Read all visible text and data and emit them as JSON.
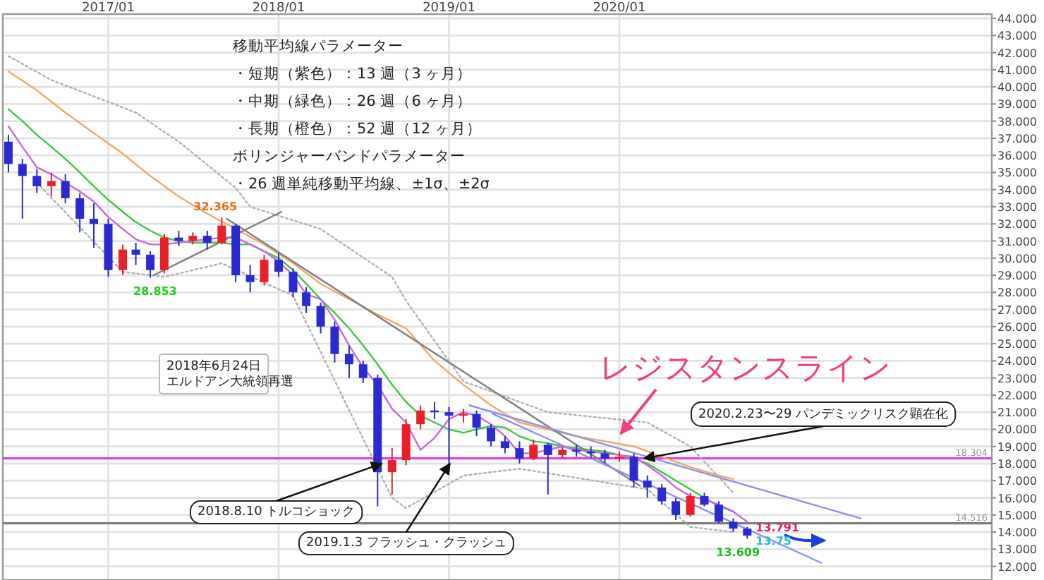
{
  "chart_data": {
    "type": "candlestick",
    "xlim": [
      "2016-05-20",
      "2022-03-09"
    ],
    "xticks": [
      {
        "value": "2017-01",
        "label": "2017/01"
      },
      {
        "value": "2018-01",
        "label": "2018/01"
      },
      {
        "value": "2019-01",
        "label": "2019/01"
      },
      {
        "value": "2020-01",
        "label": "2020/01"
      }
    ],
    "ylim": [
      11.2,
      44.25
    ],
    "yticks": [
      {
        "value": 12,
        "label": "12.000"
      },
      {
        "value": 13,
        "label": "13.000"
      },
      {
        "value": 14,
        "label": "14.000"
      },
      {
        "value": 15,
        "label": "15.000"
      },
      {
        "value": 16,
        "label": "16.000"
      },
      {
        "value": 17,
        "label": "17.000"
      },
      {
        "value": 18,
        "label": "18.000"
      },
      {
        "value": 19,
        "label": "19.000"
      },
      {
        "value": 20,
        "label": "20.000"
      },
      {
        "value": 21,
        "label": "21.000"
      },
      {
        "value": 22,
        "label": "22.000"
      },
      {
        "value": 23,
        "label": "23.000"
      },
      {
        "value": 24,
        "label": "24.000"
      },
      {
        "value": 25,
        "label": "25.000"
      },
      {
        "value": 26,
        "label": "26.000"
      },
      {
        "value": 27,
        "label": "27.000"
      },
      {
        "value": 28,
        "label": "28.000"
      },
      {
        "value": 29,
        "label": "29.000"
      },
      {
        "value": 30,
        "label": "30.000"
      },
      {
        "value": 31,
        "label": "31.000"
      },
      {
        "value": 32,
        "label": "32.000"
      },
      {
        "value": 33,
        "label": "33.000"
      },
      {
        "value": 34,
        "label": "34.000"
      },
      {
        "value": 35,
        "label": "35.000"
      },
      {
        "value": 36,
        "label": "36.000"
      },
      {
        "value": 37,
        "label": "37.000"
      },
      {
        "value": 38,
        "label": "38.000"
      },
      {
        "value": 39,
        "label": "39.000"
      },
      {
        "value": 40,
        "label": "40.000"
      },
      {
        "value": 41,
        "label": "41.000"
      },
      {
        "value": 42,
        "label": "42.000"
      },
      {
        "value": 43,
        "label": "43.000"
      },
      {
        "value": 44,
        "label": "44.000"
      }
    ],
    "grid": true,
    "x": [
      "2016-06",
      "2016-07",
      "2016-08",
      "2016-09",
      "2016-10",
      "2016-11",
      "2016-12",
      "2017-01",
      "2017-02",
      "2017-03",
      "2017-04",
      "2017-05",
      "2017-06",
      "2017-07",
      "2017-08",
      "2017-09",
      "2017-10",
      "2017-11",
      "2017-12",
      "2018-01",
      "2018-02",
      "2018-03",
      "2018-04",
      "2018-05",
      "2018-06",
      "2018-07",
      "2018-08",
      "2018-09",
      "2018-10",
      "2018-11",
      "2018-12",
      "2019-01",
      "2019-02",
      "2019-03",
      "2019-04",
      "2019-05",
      "2019-06",
      "2019-07",
      "2019-08",
      "2019-09",
      "2019-10",
      "2019-11",
      "2019-12",
      "2020-01",
      "2020-02",
      "2020-03",
      "2020-04",
      "2020-05",
      "2020-06",
      "2020-07",
      "2020-08",
      "2020-09",
      "2020-10"
    ],
    "ohlc": [
      [
        36.8,
        37.2,
        35.0,
        35.5
      ],
      [
        35.5,
        35.8,
        32.3,
        34.8
      ],
      [
        34.8,
        35.2,
        33.8,
        34.2
      ],
      [
        34.2,
        35.0,
        33.6,
        34.5
      ],
      [
        34.5,
        34.9,
        33.2,
        33.5
      ],
      [
        33.5,
        33.8,
        31.5,
        32.3
      ],
      [
        32.3,
        33.2,
        30.6,
        32.0
      ],
      [
        32.0,
        32.3,
        28.9,
        29.3
      ],
      [
        29.3,
        30.8,
        29.0,
        30.5
      ],
      [
        30.5,
        30.9,
        29.6,
        30.2
      ],
      [
        30.2,
        30.4,
        28.853,
        29.3
      ],
      [
        29.3,
        31.4,
        29.1,
        31.2
      ],
      [
        31.2,
        31.6,
        30.7,
        31.0
      ],
      [
        31.0,
        31.5,
        30.8,
        31.3
      ],
      [
        31.3,
        31.6,
        30.5,
        30.9
      ],
      [
        30.9,
        32.365,
        30.8,
        31.9
      ],
      [
        31.9,
        32.0,
        28.6,
        29.0
      ],
      [
        29.0,
        29.6,
        28.0,
        28.6
      ],
      [
        28.6,
        30.2,
        28.4,
        29.9
      ],
      [
        29.9,
        30.3,
        28.9,
        29.2
      ],
      [
        29.2,
        29.4,
        27.7,
        28.0
      ],
      [
        28.0,
        28.3,
        26.8,
        27.2
      ],
      [
        27.2,
        27.4,
        25.6,
        26.0
      ],
      [
        26.0,
        26.3,
        23.9,
        24.4
      ],
      [
        24.4,
        24.9,
        23.0,
        23.8
      ],
      [
        23.8,
        24.0,
        22.7,
        23.0
      ],
      [
        23.0,
        23.2,
        15.5,
        17.5
      ],
      [
        17.5,
        18.9,
        16.2,
        18.2
      ],
      [
        18.2,
        20.6,
        17.9,
        20.3
      ],
      [
        20.3,
        21.4,
        20.0,
        21.1
      ],
      [
        21.1,
        21.6,
        20.6,
        21.0
      ],
      [
        21.0,
        21.3,
        17.9,
        20.8
      ],
      [
        20.8,
        21.2,
        20.4,
        20.9
      ],
      [
        20.9,
        21.1,
        19.6,
        20.1
      ],
      [
        20.1,
        20.3,
        19.0,
        19.3
      ],
      [
        19.3,
        19.6,
        18.6,
        18.9
      ],
      [
        18.9,
        19.3,
        18.0,
        18.3
      ],
      [
        18.3,
        19.4,
        18.2,
        19.1
      ],
      [
        19.1,
        19.2,
        16.2,
        18.5
      ],
      [
        18.5,
        19.0,
        18.3,
        18.8
      ],
      [
        18.8,
        19.1,
        18.4,
        18.7
      ],
      [
        18.7,
        19.0,
        18.3,
        18.6
      ],
      [
        18.6,
        18.8,
        18.0,
        18.3
      ],
      [
        18.3,
        18.7,
        18.1,
        18.4
      ],
      [
        18.4,
        18.6,
        16.6,
        17.0
      ],
      [
        17.0,
        17.3,
        16.0,
        16.6
      ],
      [
        16.6,
        16.8,
        15.6,
        15.8
      ],
      [
        15.8,
        16.0,
        14.7,
        15.0
      ],
      [
        15.0,
        16.3,
        14.9,
        16.1
      ],
      [
        16.1,
        16.3,
        15.5,
        15.6
      ],
      [
        15.6,
        15.8,
        14.5,
        14.6
      ],
      [
        14.6,
        14.8,
        14.0,
        14.2
      ],
      [
        14.2,
        14.3,
        13.609,
        13.791
      ]
    ],
    "series": [
      {
        "type": "line",
        "color": "#b0b0b0",
        "line_style": "dotted",
        "x": [
          "2016-06",
          "2016-09",
          "2017-03",
          "2017-06",
          "2017-10",
          "2017-11",
          "2018-04",
          "2018-09",
          "2018-10",
          "2019-02",
          "2019-08",
          "2020-03",
          "2020-06",
          "2020-09"
        ],
        "values": [
          41.8,
          40.4,
          38.5,
          36.8,
          34.1,
          33.0,
          31.7,
          28.9,
          27.5,
          22.8,
          21.0,
          20.4,
          19.0,
          16.3
        ]
      },
      {
        "type": "line",
        "color": "#b0b0b0",
        "line_style": "dotted",
        "x": [
          "2016-08",
          "2017-02",
          "2017-05",
          "2017-09",
          "2018-02",
          "2018-09",
          "2018-10",
          "2019-02",
          "2019-06",
          "2020-03",
          "2020-06",
          "2020-09"
        ],
        "values": [
          34.4,
          29.2,
          28.9,
          29.7,
          27.8,
          16.0,
          15.4,
          17.3,
          17.7,
          16.5,
          14.3,
          14.0
        ]
      },
      {
        "type": "line",
        "color": "#f0a868",
        "x": [
          "2016-06",
          "2016-08",
          "2016-10",
          "2016-12",
          "2017-02",
          "2017-04",
          "2017-06",
          "2017-08",
          "2017-10",
          "2017-12",
          "2018-02",
          "2018-04",
          "2018-06",
          "2018-08",
          "2018-10",
          "2018-12",
          "2019-02",
          "2019-04",
          "2019-06",
          "2019-08",
          "2019-10",
          "2019-12",
          "2020-02",
          "2020-04",
          "2020-06",
          "2020-08",
          "2020-09"
        ],
        "values": [
          40.9,
          39.8,
          38.5,
          37.3,
          36.1,
          34.8,
          33.6,
          32.6,
          31.7,
          30.8,
          29.7,
          28.5,
          27.6,
          26.7,
          25.9,
          24.0,
          22.6,
          21.4,
          20.4,
          20.0,
          19.6,
          19.3,
          19.0,
          18.4,
          17.8,
          17.3,
          17.1
        ]
      },
      {
        "type": "line",
        "color": "#44c444",
        "x": [
          "2016-06",
          "2016-07",
          "2016-08",
          "2016-09",
          "2016-10",
          "2016-11",
          "2016-12",
          "2017-01",
          "2017-02",
          "2017-03",
          "2017-04",
          "2017-05",
          "2017-06",
          "2017-07",
          "2017-08",
          "2017-09",
          "2017-10",
          "2017-11",
          "2017-12",
          "2018-01",
          "2018-02",
          "2018-03",
          "2018-04",
          "2018-05",
          "2018-06",
          "2018-07",
          "2018-08",
          "2018-09",
          "2018-10",
          "2018-11",
          "2018-12",
          "2019-01",
          "2019-02",
          "2019-03",
          "2019-04",
          "2019-05",
          "2019-06",
          "2019-07",
          "2019-08",
          "2019-09",
          "2019-10",
          "2019-11",
          "2019-12",
          "2020-01",
          "2020-02",
          "2020-03",
          "2020-04",
          "2020-05",
          "2020-06",
          "2020-07",
          "2020-08",
          "2020-09"
        ],
        "values": [
          38.7,
          38.0,
          37.2,
          36.5,
          35.8,
          35.0,
          34.2,
          33.4,
          32.7,
          32.1,
          31.6,
          31.2,
          31.0,
          30.9,
          30.9,
          30.9,
          30.8,
          30.8,
          30.4,
          30.0,
          29.3,
          28.5,
          27.6,
          26.8,
          25.9,
          24.9,
          23.8,
          22.6,
          21.6,
          20.8,
          20.4,
          20.0,
          19.8,
          20.0,
          20.2,
          20.1,
          19.6,
          19.3,
          19.2,
          19.0,
          18.9,
          18.8,
          18.7,
          18.5,
          18.3,
          18.0,
          17.5,
          17.0,
          16.5,
          16.0,
          15.5,
          15.2
        ]
      },
      {
        "type": "line",
        "color": "#c46ae0",
        "x": [
          "2016-06",
          "2016-07",
          "2016-08",
          "2016-09",
          "2016-10",
          "2016-11",
          "2016-12",
          "2017-01",
          "2017-02",
          "2017-03",
          "2017-04",
          "2017-05",
          "2017-06",
          "2017-07",
          "2017-08",
          "2017-09",
          "2017-10",
          "2017-11",
          "2017-12",
          "2018-01",
          "2018-02",
          "2018-03",
          "2018-04",
          "2018-05",
          "2018-06",
          "2018-07",
          "2018-08",
          "2018-09",
          "2018-10",
          "2018-11",
          "2018-12",
          "2019-01",
          "2019-02",
          "2019-03",
          "2019-04",
          "2019-05",
          "2019-06",
          "2019-07",
          "2019-08",
          "2019-09",
          "2019-10",
          "2019-11",
          "2019-12",
          "2020-01",
          "2020-02",
          "2020-03",
          "2020-04",
          "2020-05",
          "2020-06",
          "2020-07",
          "2020-08",
          "2020-09",
          "2020-10"
        ],
        "values": [
          37.7,
          36.5,
          35.3,
          34.9,
          34.4,
          33.9,
          33.3,
          32.4,
          31.7,
          31.1,
          30.8,
          30.8,
          30.9,
          31.0,
          31.1,
          31.2,
          31.2,
          30.8,
          30.4,
          29.8,
          29.0,
          27.9,
          27.6,
          26.4,
          24.9,
          23.6,
          22.6,
          21.2,
          20.4,
          18.8,
          19.5,
          20.6,
          21.0,
          20.8,
          20.3,
          19.6,
          18.6,
          18.6,
          18.8,
          19.0,
          18.8,
          18.7,
          18.6,
          18.5,
          18.4,
          17.9,
          17.3,
          16.6,
          16.1,
          15.9,
          15.6,
          15.2,
          14.6
        ]
      },
      {
        "type": "line",
        "color": "#808080",
        "x": [
          "2017-04-08",
          "2018-01-07"
        ],
        "values": [
          29.0,
          32.7
        ]
      },
      {
        "type": "line",
        "color": "#808080",
        "x": [
          "2017-09-12",
          "2020-02-14"
        ],
        "values": [
          32.3,
          16.7
        ]
      },
      {
        "type": "line",
        "color": "#9090ea",
        "x": [
          "2019-02-14",
          "2021-06-01"
        ],
        "values": [
          21.4,
          14.8
        ]
      },
      {
        "type": "line",
        "color": "#9090ea",
        "x": [
          "2019-04-05",
          "2021-03-09"
        ],
        "values": [
          20.9,
          12.2
        ]
      }
    ],
    "ref_lines": [
      {
        "axis": "y",
        "value": 18.304,
        "label": "18.304",
        "color": "#e040e0"
      },
      {
        "axis": "y",
        "value": 14.516,
        "label": "14.516",
        "color": "#808080"
      }
    ],
    "annotations": [
      "移動平均線パラメーター",
      "・短期（紫色）：13 週（3 ヶ月）",
      "・中期（緑色）：26 週（6 ヶ月）",
      "・長期（橙色）：52 週（12 ヶ月）",
      "ボリンジャーバンドパラメーター",
      "・26 週単純移動平均線、±1σ、±2σ",
      {
        "text": "28.853",
        "x": "2017-04",
        "y": 28.853
      },
      {
        "text": "32.365",
        "x": "2017-09",
        "y": 32.365
      },
      {
        "text": "13.609",
        "x": "2020-10",
        "y": 13.609
      },
      {
        "text": "13.791",
        "x": "2020-10",
        "y": 13.791
      },
      {
        "text": "13.75",
        "x": "2020-10",
        "y": 13.75
      },
      "2018年6月24日",
      "エルドアン大統領再選",
      {
        "text": "2018.8.10 トルコショック",
        "x": "2018-08-10",
        "y": 18.0
      },
      {
        "text": "2019.1.3 フラッシュ・クラッシュ",
        "x": "2019-01-03",
        "y": 18.0
      },
      {
        "text": "2020.2.23〜29 パンデミックリスク顕在化",
        "x": "2020-02-23",
        "y": 18.3
      },
      {
        "text": "レジスタンスライン",
        "x": "2020-01",
        "y": 19.5
      }
    ]
  }
}
